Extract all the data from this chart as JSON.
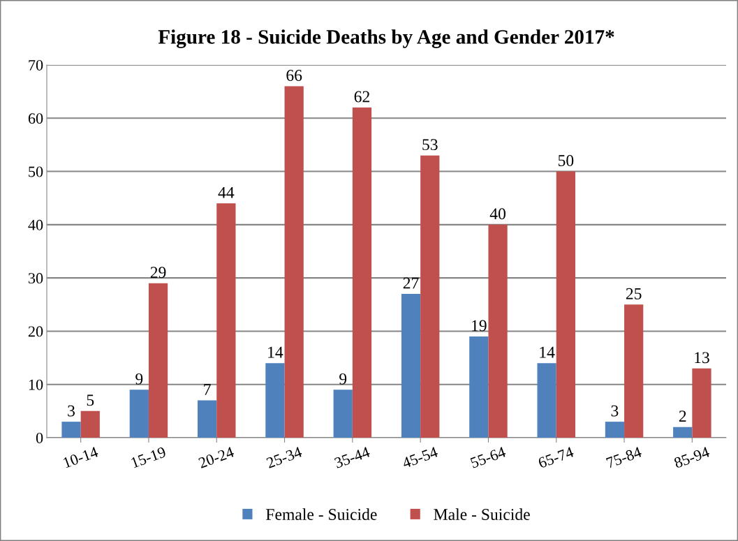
{
  "chart_data": {
    "type": "bar",
    "title": "Figure 18 - Suicide Deaths by Age and Gender 2017*",
    "categories": [
      "10-14",
      "15-19",
      "20-24",
      "25-34",
      "35-44",
      "45-54",
      "55-64",
      "65-74",
      "75-84",
      "85-94"
    ],
    "series": [
      {
        "name": "Female - Suicide",
        "color": "#4f81bd",
        "values": [
          3,
          9,
          7,
          14,
          9,
          27,
          19,
          14,
          3,
          2
        ]
      },
      {
        "name": "Male - Suicide",
        "color": "#c0504d",
        "values": [
          5,
          29,
          44,
          66,
          62,
          53,
          40,
          50,
          25,
          13
        ]
      }
    ],
    "ylim": [
      0,
      70
    ],
    "yticks": [
      0,
      10,
      20,
      30,
      40,
      50,
      60,
      70
    ],
    "grid": "y",
    "legend": "bottom",
    "data_labels": true
  }
}
